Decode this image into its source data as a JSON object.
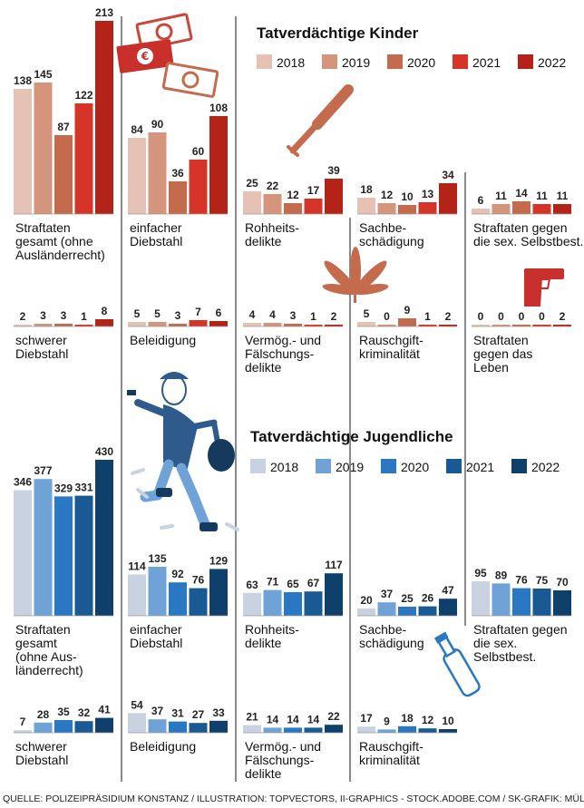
{
  "source": "QUELLE: POLIZEIPRÄSIDIUM KONSTANZ / ILLUSTRATION: TOPVECTORS, II-GRAPHICS - STOCK.ADOBE.COM / SK-GRAFIK: MÜLLER",
  "icons": [
    "money-icon",
    "baseball-bat-icon",
    "cannabis-leaf-icon",
    "pistol-icon",
    "burglar-icon",
    "bottle-icon"
  ],
  "chart_data": [
    {
      "type": "bar",
      "title": "Tatverdächtige Kinder",
      "categories": [
        "2018",
        "2019",
        "2020",
        "2021",
        "2022"
      ],
      "colors": [
        "#e6c2b4",
        "#d4957c",
        "#c46b4e",
        "#d63428",
        "#b32317"
      ],
      "panels": [
        {
          "label": [
            "Straftaten",
            "gesamt (ohne",
            "Ausländerrecht)"
          ],
          "values": [
            138,
            145,
            87,
            122,
            213
          ]
        },
        {
          "label": [
            "einfacher",
            "Diebstahl"
          ],
          "values": [
            84,
            90,
            36,
            60,
            108
          ]
        },
        {
          "label": [
            "Rohheits-",
            "delikte"
          ],
          "values": [
            25,
            22,
            12,
            17,
            39
          ]
        },
        {
          "label": [
            "Sachbe-",
            "schädigung"
          ],
          "values": [
            18,
            12,
            10,
            13,
            34
          ]
        },
        {
          "label": [
            "Straftaten gegen",
            "die sex. Selbstbest."
          ],
          "values": [
            6,
            11,
            14,
            11,
            11
          ]
        },
        {
          "label": [
            "schwerer",
            "Diebstahl"
          ],
          "values": [
            2,
            3,
            3,
            1,
            8
          ]
        },
        {
          "label": [
            "Beleidigung"
          ],
          "values": [
            5,
            5,
            3,
            7,
            6
          ]
        },
        {
          "label": [
            "Vermög.- und",
            "Fälschungs-",
            "delikte"
          ],
          "values": [
            4,
            4,
            3,
            1,
            2
          ]
        },
        {
          "label": [
            "Rauschgift-",
            "kriminalität"
          ],
          "values": [
            5,
            0,
            9,
            1,
            2
          ]
        },
        {
          "label": [
            "Straftaten",
            "gegen das",
            "Leben"
          ],
          "values": [
            0,
            0,
            0,
            0,
            2
          ]
        }
      ]
    },
    {
      "type": "bar",
      "title": "Tatverdächtige Jugendliche",
      "categories": [
        "2018",
        "2019",
        "2020",
        "2021",
        "2022"
      ],
      "colors": [
        "#c8d2e0",
        "#6fa3d8",
        "#2a78c4",
        "#1a5a94",
        "#0f3f6b"
      ],
      "panels": [
        {
          "label": [
            "Straftaten",
            "gesamt",
            "(ohne Aus-",
            "länderrecht)"
          ],
          "values": [
            346,
            377,
            329,
            331,
            430
          ]
        },
        {
          "label": [
            "einfacher",
            "Diebstahl"
          ],
          "values": [
            114,
            135,
            92,
            76,
            129
          ]
        },
        {
          "label": [
            "Rohheits-",
            "delikte"
          ],
          "values": [
            63,
            71,
            65,
            67,
            117
          ]
        },
        {
          "label": [
            "Sachbe-",
            "schädigung"
          ],
          "values": [
            20,
            37,
            25,
            26,
            47
          ]
        },
        {
          "label": [
            "Straftaten gegen",
            "die sex.",
            "Selbstbest."
          ],
          "values": [
            95,
            89,
            76,
            75,
            70
          ]
        },
        {
          "label": [
            "schwerer",
            "Diebstahl"
          ],
          "values": [
            7,
            28,
            35,
            32,
            41
          ]
        },
        {
          "label": [
            "Beleidigung"
          ],
          "values": [
            54,
            37,
            31,
            27,
            33
          ]
        },
        {
          "label": [
            "Vermög.- und",
            "Fälschungs-",
            "delikte"
          ],
          "values": [
            21,
            14,
            14,
            14,
            22
          ]
        },
        {
          "label": [
            "Rauschgift-",
            "kriminalität"
          ],
          "values": [
            17,
            9,
            18,
            12,
            10
          ]
        }
      ]
    }
  ]
}
